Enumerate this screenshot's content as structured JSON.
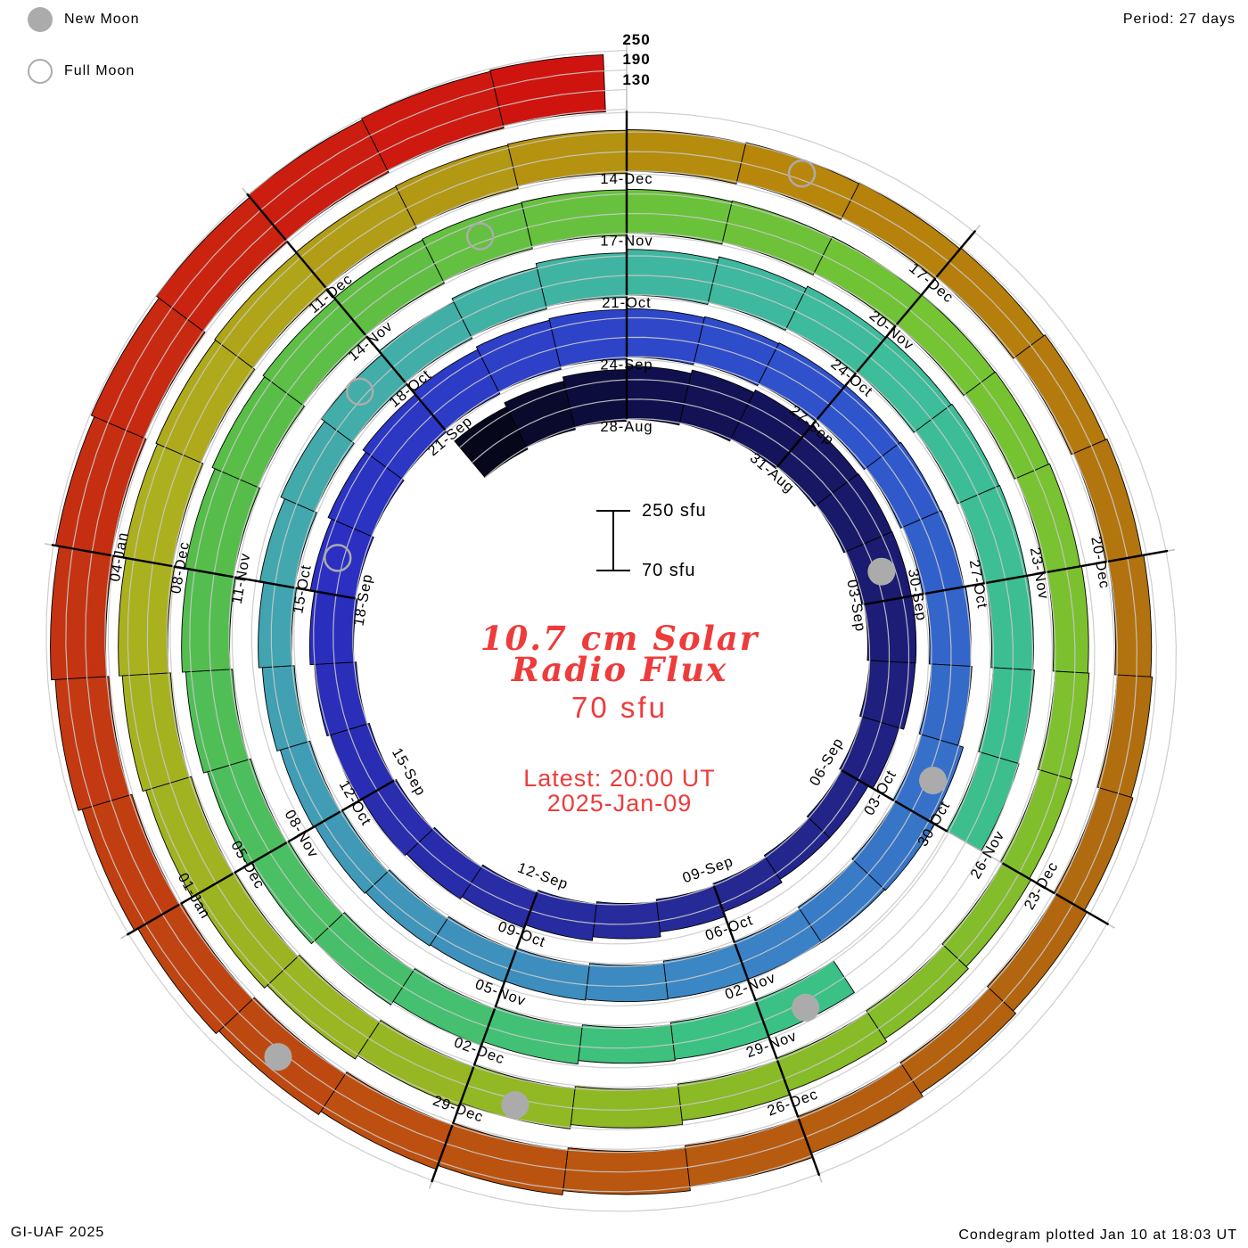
{
  "legend": {
    "new_moon_label": "New Moon",
    "full_moon_label": "Full Moon"
  },
  "header": {
    "period": "Period: 27 days"
  },
  "radial_scale": {
    "labels": [
      "250",
      "190",
      "130"
    ]
  },
  "scale_bar": {
    "top_label": "250 sfu",
    "bottom_label": "70 sfu"
  },
  "center": {
    "title_line1": "10.7 cm Solar",
    "title_line2": "Radio Flux",
    "unit": "70 sfu",
    "latest_line1": "Latest: 20:00 UT",
    "latest_line2": "2025-Jan-09"
  },
  "footer": {
    "left": "GI-UAF 2025",
    "right": "Condegram plotted Jan 10 at 18:03 UT"
  },
  "colors": {
    "red_text": "#ee3b3b",
    "moon_gray": "#ababab",
    "guide_gray": "#c9c9c9",
    "radial_gray": "#bdbdbd",
    "label_black": "#000000"
  },
  "chart_data": {
    "type": "bar",
    "subtype": "condegram-spiral",
    "title": "10.7 cm Solar Radio Flux",
    "unit": "sfu",
    "period_days": 27,
    "flux_scale": {
      "baseline": 70,
      "max": 250,
      "gridlines": [
        70,
        130,
        190,
        250
      ]
    },
    "latest_observation": "Latest: 20:00 UT 2025-Jan-09",
    "plotted": "Condegram plotted Jan 10 at 18:03 UT",
    "date_labels": [
      "28-Aug",
      "31-Aug",
      "03-Sep",
      "06-Sep",
      "09-Sep",
      "12-Sep",
      "15-Sep",
      "18-Sep",
      "21-Sep",
      "24-Sep",
      "27-Sep",
      "30-Sep",
      "03-Oct",
      "06-Oct",
      "09-Oct",
      "12-Oct",
      "15-Oct",
      "18-Oct",
      "21-Oct",
      "24-Oct",
      "27-Oct",
      "30-Oct",
      "02-Nov",
      "05-Nov",
      "08-Nov",
      "11-Nov",
      "14-Nov",
      "17-Nov",
      "20-Nov",
      "23-Nov",
      "26-Nov",
      "29-Nov",
      "02-Dec",
      "05-Dec",
      "08-Dec",
      "11-Dec",
      "14-Dec",
      "17-Dec",
      "20-Dec",
      "23-Dec",
      "26-Dec",
      "29-Dec",
      "01-Jan",
      "04-Jan"
    ],
    "label_start_index": 3,
    "label_step_days": 3,
    "days": [
      [
        "25-Aug",
        215
      ],
      [
        "26-Aug",
        222
      ],
      [
        "27-Aug",
        228
      ],
      [
        "28-Aug",
        232
      ],
      [
        "29-Aug",
        236
      ],
      [
        "30-Aug",
        238
      ],
      [
        "31-Aug",
        235
      ],
      [
        "01-Sep",
        230
      ],
      [
        "02-Sep",
        224
      ],
      [
        "03-Sep",
        218
      ],
      [
        "04-Sep",
        210
      ],
      [
        "05-Sep",
        188
      ],
      [
        "06-Sep",
        165
      ],
      [
        "07-Sep",
        158
      ],
      [
        "08-Sep",
        162
      ],
      [
        "09-Sep",
        170
      ],
      [
        "10-Sep",
        178
      ],
      [
        "11-Sep",
        183
      ],
      [
        "12-Sep",
        186
      ],
      [
        "13-Sep",
        188
      ],
      [
        "14-Sep",
        190
      ],
      [
        "15-Sep",
        194
      ],
      [
        "16-Sep",
        198
      ],
      [
        "17-Sep",
        204
      ],
      [
        "18-Sep",
        210
      ],
      [
        "19-Sep",
        215
      ],
      [
        "20-Sep",
        219
      ],
      [
        "21-Sep",
        222
      ],
      [
        "22-Sep",
        224
      ],
      [
        "23-Sep",
        222
      ],
      [
        "24-Sep",
        218
      ],
      [
        "25-Sep",
        214
      ],
      [
        "26-Sep",
        210
      ],
      [
        "27-Sep",
        206
      ],
      [
        "28-Sep",
        202
      ],
      [
        "29-Sep",
        198
      ],
      [
        "30-Sep",
        196
      ],
      [
        "01-Oct",
        194
      ],
      [
        "02-Oct",
        204
      ],
      [
        "03-Oct",
        210
      ],
      [
        "04-Oct",
        200
      ],
      [
        "05-Oct",
        192
      ],
      [
        "06-Oct",
        186
      ],
      [
        "07-Oct",
        181
      ],
      [
        "08-Oct",
        177
      ],
      [
        "09-Oct",
        173
      ],
      [
        "10-Oct",
        170
      ],
      [
        "11-Oct",
        167
      ],
      [
        "12-Oct",
        165
      ],
      [
        "13-Oct",
        168
      ],
      [
        "14-Oct",
        172
      ],
      [
        "15-Oct",
        177
      ],
      [
        "16-Oct",
        183
      ],
      [
        "17-Oct",
        189
      ],
      [
        "18-Oct",
        195
      ],
      [
        "19-Oct",
        200
      ],
      [
        "20-Oct",
        206
      ],
      [
        "21-Oct",
        210
      ],
      [
        "22-Oct",
        213
      ],
      [
        "23-Oct",
        214
      ],
      [
        "24-Oct",
        212
      ],
      [
        "25-Oct",
        208
      ],
      [
        "26-Oct",
        203
      ],
      [
        "27-Oct",
        198
      ],
      [
        "28-Oct",
        196
      ],
      [
        "29-Oct",
        192
      ],
      [
        "30-Oct",
        null
      ],
      [
        "31-Oct",
        null
      ],
      [
        "01-Nov",
        186
      ],
      [
        "02-Nov",
        183
      ],
      [
        "03-Nov",
        180
      ],
      [
        "04-Nov",
        184
      ],
      [
        "05-Nov",
        190
      ],
      [
        "06-Nov",
        196
      ],
      [
        "07-Nov",
        202
      ],
      [
        "08-Nov",
        208
      ],
      [
        "09-Nov",
        213
      ],
      [
        "10-Nov",
        217
      ],
      [
        "11-Nov",
        220
      ],
      [
        "12-Nov",
        222
      ],
      [
        "13-Nov",
        221
      ],
      [
        "14-Nov",
        218
      ],
      [
        "15-Nov",
        214
      ],
      [
        "16-Nov",
        209
      ],
      [
        "17-Nov",
        204
      ],
      [
        "18-Nov",
        199
      ],
      [
        "19-Nov",
        194
      ],
      [
        "20-Nov",
        189
      ],
      [
        "21-Nov",
        184
      ],
      [
        "22-Nov",
        180
      ],
      [
        "23-Nov",
        177
      ],
      [
        "24-Nov",
        174
      ],
      [
        "25-Nov",
        172
      ],
      [
        "26-Nov",
        171
      ],
      [
        "27-Nov",
        173
      ],
      [
        "28-Nov",
        177
      ],
      [
        "29-Nov",
        182
      ],
      [
        "30-Nov",
        188
      ],
      [
        "01-Dec",
        194
      ],
      [
        "02-Dec",
        199
      ],
      [
        "03-Dec",
        205
      ],
      [
        "04-Dec",
        210
      ],
      [
        "05-Dec",
        215
      ],
      [
        "06-Dec",
        218
      ],
      [
        "07-Dec",
        221
      ],
      [
        "08-Dec",
        222
      ],
      [
        "09-Dec",
        220
      ],
      [
        "10-Dec",
        216
      ],
      [
        "11-Dec",
        211
      ],
      [
        "12-Dec",
        206
      ],
      [
        "13-Dec",
        202
      ],
      [
        "14-Dec",
        197
      ],
      [
        "15-Dec",
        193
      ],
      [
        "16-Dec",
        189
      ],
      [
        "17-Dec",
        186
      ],
      [
        "18-Dec",
        184
      ],
      [
        "19-Dec",
        182
      ],
      [
        "20-Dec",
        180
      ],
      [
        "21-Dec",
        178
      ],
      [
        "22-Dec",
        177
      ],
      [
        "23-Dec",
        179
      ],
      [
        "24-Dec",
        183
      ],
      [
        "25-Dec",
        189
      ],
      [
        "26-Dec",
        196
      ],
      [
        "27-Dec",
        202
      ],
      [
        "28-Dec",
        208
      ],
      [
        "29-Dec",
        214
      ],
      [
        "30-Dec",
        219
      ],
      [
        "31-Dec",
        224
      ],
      [
        "01-Jan",
        229
      ],
      [
        "02-Jan",
        234
      ],
      [
        "03-Jan",
        239
      ],
      [
        "04-Jan",
        243
      ],
      [
        "05-Jan",
        246
      ],
      [
        "06-Jan",
        249
      ],
      [
        "07-Jan",
        250
      ],
      [
        "08-Jan",
        248
      ],
      [
        "09-Jan",
        245
      ]
    ],
    "missing_dates": [
      "30-Oct",
      "31-Oct"
    ],
    "moons": {
      "new": [
        {
          "date": "02-Sep",
          "index": 8
        },
        {
          "date": "02-Oct",
          "index": 38
        },
        {
          "date": "01-Nov",
          "index": 68
        },
        {
          "date": "01-Dec",
          "index": 98
        },
        {
          "date": "30-Dec",
          "index": 127
        }
      ],
      "full": [
        {
          "date": "18-Sep",
          "index": 24
        },
        {
          "date": "17-Oct",
          "index": 53
        },
        {
          "date": "15-Nov",
          "index": 82
        },
        {
          "date": "15-Dec",
          "index": 112
        }
      ]
    },
    "color_stops": [
      [
        0,
        "#07071c"
      ],
      [
        3,
        "#10104e"
      ],
      [
        9,
        "#1d1d78"
      ],
      [
        15,
        "#262a96"
      ],
      [
        24,
        "#2b2fc2"
      ],
      [
        33,
        "#2f55cd"
      ],
      [
        42,
        "#3b86c4"
      ],
      [
        51,
        "#43a8ad"
      ],
      [
        60,
        "#3dbd9a"
      ],
      [
        69,
        "#3bc183"
      ],
      [
        78,
        "#56bd4a"
      ],
      [
        87,
        "#74c434"
      ],
      [
        96,
        "#8aba26"
      ],
      [
        105,
        "#adb01e"
      ],
      [
        112,
        "#b8860b"
      ],
      [
        119,
        "#b06a10"
      ],
      [
        126,
        "#bd4f10"
      ],
      [
        131,
        "#c43312"
      ],
      [
        137,
        "#cf1410"
      ]
    ]
  }
}
